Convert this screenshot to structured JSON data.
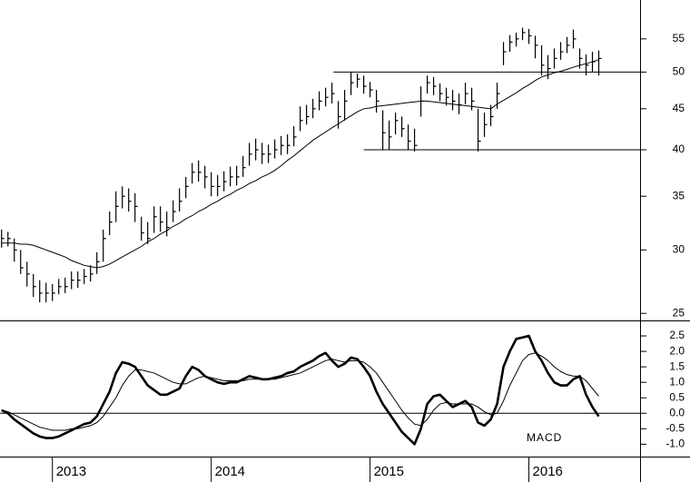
{
  "chart_data": [
    {
      "type": "ohlc",
      "log_scale": true,
      "color": "#000000",
      "x": [
        2012.68,
        2012.72,
        2012.76,
        2012.8,
        2012.84,
        2012.88,
        2012.92,
        2012.96,
        2013,
        2013.04,
        2013.08,
        2013.12,
        2013.16,
        2013.2,
        2013.24,
        2013.28,
        2013.32,
        2013.36,
        2013.4,
        2013.44,
        2013.48,
        2013.52,
        2013.56,
        2013.6,
        2013.64,
        2013.68,
        2013.72,
        2013.76,
        2013.8,
        2013.84,
        2013.88,
        2013.92,
        2013.96,
        2014,
        2014.04,
        2014.08,
        2014.12,
        2014.16,
        2014.2,
        2014.24,
        2014.28,
        2014.32,
        2014.36,
        2014.4,
        2014.44,
        2014.48,
        2014.52,
        2014.56,
        2014.6,
        2014.64,
        2014.68,
        2014.72,
        2014.76,
        2014.8,
        2014.84,
        2014.88,
        2014.92,
        2014.96,
        2015,
        2015.04,
        2015.08,
        2015.12,
        2015.16,
        2015.2,
        2015.24,
        2015.28,
        2015.32,
        2015.36,
        2015.4,
        2015.44,
        2015.48,
        2015.52,
        2015.56,
        2015.6,
        2015.64,
        2015.68,
        2015.72,
        2015.76,
        2015.8,
        2015.84,
        2015.88,
        2015.92,
        2015.96,
        2016,
        2016.04,
        2016.08,
        2016.12,
        2016.16,
        2016.2,
        2016.24,
        2016.28,
        2016.32,
        2016.36,
        2016.4,
        2016.44
      ],
      "high": [
        31.8,
        31.6,
        31,
        30,
        29,
        28,
        27.5,
        27.3,
        27.2,
        27.6,
        27.7,
        28.2,
        28.2,
        28.4,
        28.7,
        29.8,
        31.8,
        33.5,
        35.5,
        36,
        35.8,
        35.3,
        33,
        32.5,
        34,
        34,
        33.5,
        34.6,
        35.8,
        37,
        38.5,
        38.8,
        38.2,
        37.5,
        37.2,
        37.6,
        38.1,
        38.2,
        39.3,
        40.8,
        41.3,
        40.8,
        40.6,
        41.2,
        41.6,
        41.8,
        42.8,
        45.3,
        45.5,
        46.3,
        47.3,
        47.8,
        48.5,
        46,
        47.5,
        50,
        49.8,
        49.5,
        48.6,
        47.5,
        44.8,
        43.5,
        44.5,
        44,
        43,
        42.5,
        48,
        49.5,
        49.3,
        48.4,
        47.8,
        47.5,
        47,
        48.5,
        47.8,
        45,
        44.5,
        45.5,
        48.5,
        54.5,
        55.6,
        56,
        56.8,
        56.6,
        55.5,
        54,
        52.5,
        53.5,
        54.5,
        55.3,
        56.5,
        53.5,
        52.6,
        53,
        53.2
      ],
      "low": [
        30.2,
        30.3,
        29,
        28,
        27,
        26.2,
        25.8,
        25.8,
        25.9,
        26.4,
        26.5,
        26.8,
        26.9,
        27.2,
        27.4,
        28,
        29,
        31.3,
        32.5,
        33.8,
        33.5,
        32.5,
        30.8,
        30.5,
        31.5,
        31.6,
        31.2,
        32.5,
        33.5,
        34.8,
        36.3,
        36.5,
        35.8,
        35,
        35,
        35.5,
        36,
        36.1,
        37,
        38.2,
        38.8,
        38.4,
        38.5,
        39,
        39.4,
        39.5,
        40.4,
        42.2,
        43,
        43.8,
        44.8,
        45.3,
        45.7,
        42.5,
        43.5,
        46.8,
        47.8,
        47,
        46.5,
        44.5,
        40,
        40,
        41.8,
        41.5,
        40,
        39.8,
        44,
        47,
        46.8,
        46,
        45.4,
        44.8,
        44.3,
        45.6,
        44.8,
        39.8,
        41.5,
        42.8,
        45,
        51,
        53,
        53.8,
        54.8,
        54.2,
        52,
        49.5,
        49,
        50.5,
        51.8,
        52.8,
        53.5,
        50.5,
        49.5,
        50,
        49.5
      ],
      "close": [
        31,
        31,
        30,
        28.5,
        28,
        27,
        26.5,
        26.5,
        26.5,
        27,
        27,
        27.5,
        27.5,
        27.8,
        28,
        29,
        31,
        32.5,
        34,
        35,
        34.5,
        34,
        31.5,
        31,
        33,
        32.5,
        32,
        33.5,
        34.5,
        36,
        37.5,
        37.5,
        37,
        36,
        36,
        36.5,
        37,
        37,
        38,
        39.5,
        40,
        39.5,
        39.5,
        40,
        40.5,
        40.5,
        41.5,
        43.5,
        44,
        45,
        46,
        46.5,
        47,
        44,
        46,
        48.5,
        49,
        48,
        47.5,
        46,
        42,
        41.5,
        43.5,
        42.5,
        41,
        40.5,
        46,
        48.5,
        48,
        47,
        46.5,
        46,
        45.5,
        47,
        46,
        41,
        43,
        44,
        47,
        53,
        54.5,
        55,
        56,
        55.5,
        54,
        51,
        50.5,
        52,
        53,
        54,
        55,
        52,
        51,
        51.5,
        52
      ],
      "ma": [
        30.6,
        30.6,
        30.6,
        30.5,
        30.5,
        30.4,
        30.2,
        30.0,
        29.8,
        29.6,
        29.4,
        29.1,
        28.9,
        28.7,
        28.6,
        28.5,
        28.6,
        28.8,
        29.1,
        29.4,
        29.7,
        30.0,
        30.3,
        30.7,
        31.0,
        31.4,
        31.7,
        32.1,
        32.4,
        32.8,
        33.1,
        33.5,
        33.8,
        34.2,
        34.5,
        34.9,
        35.2,
        35.6,
        35.9,
        36.3,
        36.6,
        37.0,
        37.3,
        37.7,
        38.2,
        38.8,
        39.3,
        39.9,
        40.5,
        41.1,
        41.6,
        42.1,
        42.6,
        43.1,
        43.6,
        44.1,
        44.6,
        45.0,
        45.1,
        45.3,
        45.4,
        45.5,
        45.6,
        45.7,
        45.8,
        45.9,
        46.0,
        46.0,
        45.9,
        45.8,
        45.7,
        45.6,
        45.5,
        45.4,
        45.3,
        45.2,
        45.1,
        45.0,
        45.6,
        46.1,
        46.6,
        47.1,
        47.7,
        48.2,
        48.8,
        49.3,
        49.6,
        49.9,
        50.1,
        50.4,
        50.7,
        51.0,
        51.2,
        51.5,
        51.8
      ],
      "levels": [
        {
          "value": 50,
          "from": 2014.77
        },
        {
          "value": 40,
          "from": 2014.96
        }
      ],
      "ylim": [
        24.5,
        61.5
      ],
      "yticks": [
        25,
        30,
        35,
        40,
        45,
        50,
        55
      ]
    },
    {
      "type": "line",
      "annotation": "MACD",
      "zero_line": true,
      "x": [
        2012.68,
        2012.72,
        2012.76,
        2012.8,
        2012.84,
        2012.88,
        2012.92,
        2012.96,
        2013,
        2013.04,
        2013.08,
        2013.12,
        2013.16,
        2013.2,
        2013.24,
        2013.28,
        2013.32,
        2013.36,
        2013.4,
        2013.44,
        2013.48,
        2013.52,
        2013.56,
        2013.6,
        2013.64,
        2013.68,
        2013.72,
        2013.76,
        2013.8,
        2013.84,
        2013.88,
        2013.92,
        2013.96,
        2014,
        2014.04,
        2014.08,
        2014.12,
        2014.16,
        2014.2,
        2014.24,
        2014.28,
        2014.32,
        2014.36,
        2014.4,
        2014.44,
        2014.48,
        2014.52,
        2014.56,
        2014.6,
        2014.64,
        2014.68,
        2014.72,
        2014.76,
        2014.8,
        2014.84,
        2014.88,
        2014.92,
        2014.96,
        2015,
        2015.04,
        2015.08,
        2015.12,
        2015.16,
        2015.2,
        2015.24,
        2015.28,
        2015.32,
        2015.36,
        2015.4,
        2015.44,
        2015.48,
        2015.52,
        2015.56,
        2015.6,
        2015.64,
        2015.68,
        2015.72,
        2015.76,
        2015.8,
        2015.84,
        2015.88,
        2015.92,
        2015.96,
        2016,
        2016.04,
        2016.08,
        2016.12,
        2016.16,
        2016.2,
        2016.24,
        2016.28,
        2016.32,
        2016.36,
        2016.4,
        2016.44
      ],
      "series": [
        {
          "color": "#000000",
          "width": 2.6,
          "values": [
            0.1,
            0.0,
            -0.2,
            -0.35,
            -0.5,
            -0.65,
            -0.75,
            -0.8,
            -0.8,
            -0.75,
            -0.65,
            -0.55,
            -0.45,
            -0.35,
            -0.3,
            -0.1,
            0.3,
            0.7,
            1.3,
            1.65,
            1.6,
            1.5,
            1.2,
            0.9,
            0.75,
            0.6,
            0.6,
            0.7,
            0.8,
            1.2,
            1.5,
            1.4,
            1.2,
            1.1,
            1.0,
            0.95,
            1.0,
            1.0,
            1.1,
            1.2,
            1.15,
            1.1,
            1.1,
            1.15,
            1.2,
            1.3,
            1.35,
            1.5,
            1.6,
            1.7,
            1.85,
            1.95,
            1.7,
            1.5,
            1.6,
            1.8,
            1.75,
            1.5,
            1.2,
            0.7,
            0.3,
            0.0,
            -0.3,
            -0.6,
            -0.8,
            -1.0,
            -0.5,
            0.3,
            0.55,
            0.6,
            0.4,
            0.2,
            0.3,
            0.4,
            0.2,
            -0.3,
            -0.4,
            -0.2,
            0.3,
            1.5,
            2.0,
            2.4,
            2.45,
            2.5,
            2.0,
            1.7,
            1.3,
            1.0,
            0.9,
            0.9,
            1.1,
            1.2,
            0.6,
            0.2,
            -0.1
          ]
        },
        {
          "color": "#000000",
          "width": 1,
          "values": [
            0.1,
            0.05,
            -0.05,
            -0.15,
            -0.25,
            -0.35,
            -0.45,
            -0.5,
            -0.55,
            -0.55,
            -0.55,
            -0.5,
            -0.5,
            -0.45,
            -0.4,
            -0.3,
            -0.1,
            0.2,
            0.5,
            0.9,
            1.2,
            1.4,
            1.4,
            1.35,
            1.3,
            1.2,
            1.1,
            1.0,
            0.95,
            0.95,
            1.05,
            1.15,
            1.2,
            1.15,
            1.1,
            1.05,
            1.05,
            1.05,
            1.05,
            1.1,
            1.1,
            1.1,
            1.1,
            1.1,
            1.15,
            1.2,
            1.25,
            1.3,
            1.4,
            1.5,
            1.6,
            1.7,
            1.75,
            1.7,
            1.65,
            1.7,
            1.7,
            1.65,
            1.5,
            1.3,
            1.0,
            0.7,
            0.4,
            0.1,
            -0.15,
            -0.35,
            -0.4,
            -0.2,
            0.1,
            0.3,
            0.35,
            0.3,
            0.3,
            0.3,
            0.3,
            0.2,
            0.05,
            -0.05,
            0.0,
            0.4,
            0.9,
            1.3,
            1.7,
            1.9,
            1.95,
            1.85,
            1.7,
            1.5,
            1.35,
            1.25,
            1.2,
            1.2,
            1.05,
            0.8,
            0.55
          ]
        }
      ],
      "ylim": [
        -1.4,
        3.0
      ],
      "yticks": [
        2.5,
        {
          "value": 2,
          "label": "2.0"
        },
        1.5,
        {
          "value": 1,
          "label": "1.0"
        },
        0.5,
        {
          "value": 0,
          "label": "0.0"
        },
        -0.5,
        {
          "value": -1,
          "label": "-1.0"
        }
      ],
      "xlim": [
        2012.67,
        2016.7
      ],
      "xticks": [
        2013,
        2014,
        2015,
        2016
      ]
    }
  ]
}
